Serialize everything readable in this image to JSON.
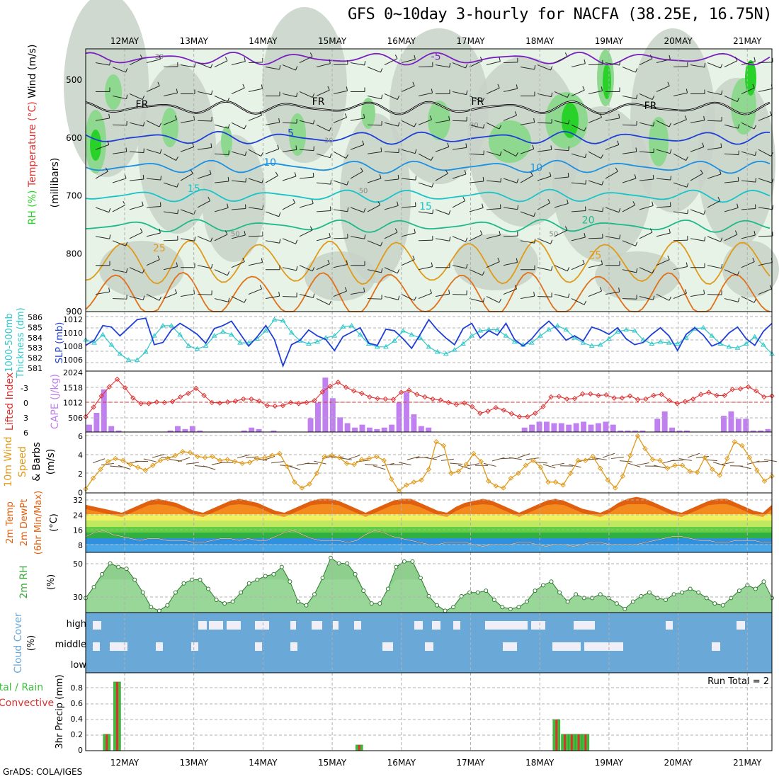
{
  "header": {
    "title": "GFS 0~10day 3-hourly for NACFA (38.25E, 16.75N)",
    "credit": "GrADS: COLA/IGES"
  },
  "colors": {
    "rh_light": "#e6f3e6",
    "rh_gray": "#c8d2c8",
    "rh_mid": "#8fd88f",
    "rh_strong": "#28d228",
    "iso_purple": "#7a1fbf",
    "iso_black": "#000000",
    "iso_blue": "#1f3fd6",
    "iso_lightblue": "#1e90e0",
    "iso_cyan": "#19c3c8",
    "iso_teal": "#1fb88a",
    "iso_orange": "#e09a1a",
    "iso_darkorange": "#e0701a",
    "slp": "#1f3fd6",
    "thickness": "#2ec8c8",
    "lifted": "#e03030",
    "cape": "#c080f0",
    "wind10": "#e09a1a",
    "t2m": "#e06010",
    "rh2m": "#3caa3c",
    "cloud": "#6aa8d8",
    "cloud_gap": "#f0eef6",
    "precip_total": "#3cbf3c",
    "precip_conv": "#e03030"
  },
  "chart_data": [
    {
      "id": "upper-air",
      "type": "contour",
      "ylabel_parts": [
        "RH (%)",
        "Temperature (°C)",
        "Wind (m/s)"
      ],
      "yunit": "(millibars)",
      "y_ticks": [
        "500",
        "600",
        "700",
        "800",
        "900"
      ],
      "x_ticks": [
        "12MAY",
        "13MAY",
        "14MAY",
        "15MAY",
        "16MAY",
        "17MAY",
        "18MAY",
        "19MAY",
        "20MAY",
        "21MAY"
      ],
      "isotherm_labels": [
        {
          "text": "-5",
          "level": 465,
          "day": 4.5
        },
        {
          "text": "FR",
          "level": 548,
          "day": 0.25
        },
        {
          "text": "FR",
          "level": 543,
          "day": 2.8
        },
        {
          "text": "FR",
          "level": 543,
          "day": 5.1
        },
        {
          "text": "FR",
          "level": 550,
          "day": 7.6
        },
        {
          "text": "5",
          "level": 597,
          "day": 2.4
        },
        {
          "text": "10",
          "level": 648,
          "day": 2.1
        },
        {
          "text": "10",
          "level": 657,
          "day": 5.95
        },
        {
          "text": "15",
          "level": 693,
          "day": 1.0
        },
        {
          "text": "15",
          "level": 724,
          "day": 4.35
        },
        {
          "text": "20",
          "level": 748,
          "day": 6.7
        },
        {
          "text": "25",
          "level": 796,
          "day": 0.5
        },
        {
          "text": "25",
          "level": 808,
          "day": 6.8
        }
      ],
      "rh_labels": [
        {
          "text": "30",
          "level": 463,
          "day": 0.5
        },
        {
          "text": "30",
          "level": 608,
          "day": 2.95
        },
        {
          "text": "30",
          "level": 582,
          "day": 5.05
        },
        {
          "text": "50",
          "level": 695,
          "day": 3.45
        },
        {
          "text": "50",
          "level": 770,
          "day": 1.6
        },
        {
          "text": "50",
          "level": 770,
          "day": 6.2
        }
      ]
    },
    {
      "id": "slp-thickness",
      "type": "line",
      "ylabel_left": [
        "1000-500mb",
        "Thickness (dm)"
      ],
      "ylabel_right": "SLP (mb)",
      "left_ticks": [
        "586",
        "585",
        "584",
        "583",
        "582",
        "581"
      ],
      "right_ticks": [
        "1012",
        "1010",
        "1008",
        "1006"
      ],
      "series": [
        {
          "name": "SLP",
          "values": [
            1008.3,
            1009.0,
            1011.0,
            1010.8,
            1009.6,
            1010.7,
            1011.8,
            1012.0,
            1008.4,
            1008.7,
            1010.4,
            1011.3,
            1010.6,
            1009.8,
            1008.6,
            1010.6,
            1011.0,
            1011.6,
            1009.9,
            1008.2,
            1009.5,
            1011.0,
            1009.1,
            1005.5,
            1008.4,
            1009.0,
            1010.4,
            1009.6,
            1009.1,
            1007.6,
            1009.5,
            1010.1,
            1010.7,
            1008.6,
            1008.3,
            1010.5,
            1010.3,
            1009.2,
            1007.9,
            1009.8,
            1011.8,
            1010.4,
            1009.3,
            1008.4,
            1010.6,
            1011.3,
            1009.3,
            1010.3,
            1009.7,
            1011.3,
            1009.1,
            1008.2,
            1009.2,
            1010.6,
            1011.6,
            1010.4,
            1009.0,
            1009.6,
            1008.9,
            1010.8,
            1010.4,
            1009.8,
            1010.7,
            1009.2,
            1008.4,
            1008.7,
            1009.8,
            1010.7,
            1009.6,
            1007.6,
            1009.8,
            1010.7,
            1009.7,
            1008.2,
            1008.7,
            1010.0,
            1010.8,
            1009.2,
            1008.3,
            1010.2,
            1011.3
          ]
        },
        {
          "name": "Thickness",
          "values": [
            583.6,
            583.3,
            584.1,
            583.1,
            582.2,
            581.6,
            581.6,
            582.4,
            584.0,
            585.0,
            585.0,
            584.1,
            583.0,
            582.7,
            583.0,
            584.0,
            584.4,
            584.1,
            583.3,
            583.3,
            583.7,
            584.5,
            585.6,
            585.5,
            584.3,
            583.5,
            583.2,
            583.4,
            583.8,
            584.0,
            584.9,
            585.0,
            584.1,
            583.2,
            582.9,
            582.9,
            583.5,
            584.5,
            584.1,
            583.8,
            582.9,
            582.4,
            582.2,
            582.6,
            583.2,
            584.0,
            584.5,
            584.6,
            584.6,
            584.0,
            583.4,
            583.1,
            583.3,
            584.0,
            584.6,
            585.0,
            584.6,
            583.8,
            583.3,
            583.0,
            583.1,
            583.7,
            584.4,
            584.6,
            584.5,
            583.6,
            583.2,
            583.4,
            583.3,
            583.2,
            583.8,
            584.7,
            584.8,
            584.0,
            583.2,
            582.9,
            582.8,
            583.2,
            583.9,
            583.1,
            582.2
          ]
        }
      ]
    },
    {
      "id": "lifted-cape",
      "type": "bar-line",
      "ylabel_left": "Lifted Index",
      "ylabel_right": "CAPE (J/kg)",
      "left_ticks": [
        "-3",
        "0",
        "3",
        "6"
      ],
      "right_ticks": [
        "2024",
        "1518",
        "1012",
        "506"
      ],
      "lifted_index": [
        3.0,
        1.1,
        -1.1,
        -2.9,
        -4.4,
        -2.7,
        -0.7,
        0.4,
        0.4,
        0.1,
        0.2,
        0.0,
        -0.9,
        -1.6,
        -2.6,
        -1.2,
        0.2,
        0.3,
        0.1,
        -0.1,
        -0.5,
        -0.5,
        -0.1,
        0.8,
        0.9,
        0.8,
        0.2,
        0.4,
        0.2,
        -0.2,
        -1.9,
        -3.0,
        -3.8,
        -2.8,
        -2.1,
        -1.6,
        -0.9,
        -0.6,
        -0.5,
        -0.4,
        -1.8,
        -2.2,
        -1.4,
        -0.9,
        -0.5,
        -0.3,
        0.2,
        0.6,
        0.3,
        1.0,
        2.3,
        1.9,
        1.2,
        1.7,
        2.4,
        3.0,
        3.0,
        2.3,
        1.0,
        -0.9,
        -1.0,
        -0.5,
        -0.6,
        -1.5,
        -1.5,
        -1.2,
        -1.3,
        -0.7,
        -0.7,
        -1.1,
        -0.4,
        -0.5,
        -1.2,
        -1.4,
        -0.2,
        0.4,
        0.0,
        -0.5,
        -1.4,
        -1.8,
        -1.2,
        -1.2,
        -2.4,
        -2.5,
        -2.9,
        -2.1,
        -0.9,
        -1.1
      ],
      "cape": [
        250,
        650,
        1450,
        200,
        50,
        0,
        0,
        0,
        0,
        0,
        0,
        50,
        200,
        100,
        200,
        50,
        0,
        0,
        0,
        0,
        0,
        50,
        150,
        100,
        0,
        50,
        0,
        0,
        0,
        0,
        470,
        1000,
        1850,
        1150,
        500,
        300,
        150,
        250,
        150,
        100,
        150,
        250,
        1000,
        1350,
        600,
        200,
        150,
        0,
        0,
        0,
        0,
        0,
        0,
        0,
        0,
        0,
        0,
        0,
        0,
        150,
        250,
        350,
        350,
        300,
        300,
        250,
        300,
        350,
        250,
        300,
        350,
        250,
        50,
        50,
        50,
        50,
        0,
        450,
        700,
        150,
        50,
        50,
        0,
        0,
        0,
        0,
        550,
        700,
        450,
        450,
        50,
        50,
        100
      ]
    },
    {
      "id": "wind10m",
      "type": "line",
      "ylabel": [
        "10m Wind",
        "Speed",
        "& Barbs",
        "(m/s)"
      ],
      "y_ticks": [
        "6",
        "4",
        "2",
        "0"
      ],
      "series": [
        {
          "name": "Speed",
          "values": [
            0.4,
            1.5,
            2.4,
            3.2,
            3.5,
            3.3,
            2.9,
            2.6,
            2.3,
            2.8,
            3.3,
            3.5,
            3.8,
            4.2,
            4.1,
            3.7,
            3.6,
            3.7,
            3.3,
            3.4,
            3.2,
            3.0,
            3.1,
            3.5,
            3.6,
            3.8,
            4.0,
            2.7,
            1.1,
            0.5,
            0.9,
            2.0,
            3.7,
            3.8,
            3.6,
            3.0,
            2.9,
            3.4,
            3.5,
            3.7,
            3.3,
            1.4,
            0.2,
            0.8,
            1.1,
            1.3,
            2.4,
            5.2,
            4.8,
            2.0,
            2.2,
            2.9,
            4.0,
            3.2,
            1.2,
            0.7,
            0.5,
            1.5,
            2.0,
            2.8,
            3.3,
            2.6,
            1.1,
            1.1,
            0.8,
            2.0,
            3.3,
            3.3,
            3.7,
            2.5,
            1.3,
            0.5,
            1.7,
            3.8,
            5.8,
            4.5,
            3.4,
            3.3,
            2.5,
            2.8,
            2.8,
            2.2,
            2.1,
            3.6,
            2.4,
            1.8,
            3.5,
            5.2,
            4.8,
            3.6,
            2.3,
            1.2,
            1.7
          ]
        }
      ]
    },
    {
      "id": "temp2m",
      "type": "area",
      "ylabel": [
        "2m Temp",
        "2m DewPt",
        "(6hr Min/Max)",
        "(°C)"
      ],
      "y_ticks": [
        "32",
        "24",
        "16",
        "8"
      ],
      "series": [
        {
          "name": "Temp",
          "values": [
            28,
            27,
            26,
            25,
            24,
            26,
            28,
            30,
            31,
            30,
            29,
            27,
            25,
            24,
            26,
            28,
            30,
            31,
            30,
            29,
            27,
            25,
            24,
            26,
            28,
            30,
            31,
            31,
            30,
            28,
            26,
            24,
            26,
            28,
            30,
            31,
            31,
            29,
            27,
            25,
            24,
            27,
            29,
            30,
            31,
            30,
            28,
            26,
            24,
            26,
            28,
            30,
            31,
            30,
            28,
            26,
            25,
            24,
            26,
            29,
            31,
            32,
            31,
            29,
            27,
            25,
            24,
            26,
            28,
            30,
            31,
            31,
            29,
            27,
            25,
            24,
            28
          ]
        },
        {
          "name": "DewPt",
          "values": [
            12,
            14,
            15,
            13,
            12,
            11,
            10,
            11,
            11,
            10,
            10,
            10,
            9,
            9,
            10,
            11,
            11,
            10,
            11,
            10,
            10,
            12,
            14,
            15,
            13,
            11,
            10,
            10,
            10,
            9,
            10,
            13,
            15,
            14,
            12,
            11,
            10,
            9,
            8,
            8,
            9,
            9,
            9,
            8,
            7,
            8,
            8,
            8,
            9,
            9,
            8,
            7,
            8,
            8,
            7,
            8,
            9,
            9,
            8,
            8,
            8,
            8,
            9,
            10,
            11,
            12,
            12,
            11,
            10,
            10,
            9,
            9,
            10,
            10,
            10,
            9,
            9
          ]
        }
      ]
    },
    {
      "id": "rh2m",
      "type": "area",
      "ylabel": "2m RH",
      "yunit": "(%)",
      "y_ticks": [
        "50",
        "30"
      ],
      "series": [
        {
          "name": "RH",
          "values": [
            30,
            36,
            43,
            49,
            47,
            46,
            40,
            33,
            25,
            23,
            26,
            33,
            38,
            40,
            40,
            35,
            29,
            27,
            28,
            33,
            38,
            40,
            42,
            43,
            47,
            39,
            28,
            26,
            32,
            41,
            52,
            49,
            49,
            43,
            34,
            27,
            27,
            35,
            47,
            50,
            50,
            41,
            31,
            26,
            23,
            25,
            31,
            33,
            33,
            34,
            29,
            25,
            24,
            25,
            28,
            34,
            37,
            39,
            33,
            28,
            32,
            30,
            30,
            32,
            30,
            27,
            24,
            28,
            31,
            33,
            30,
            29,
            32,
            33,
            35,
            33,
            30,
            27,
            26,
            30,
            34,
            37,
            35,
            39,
            30
          ]
        }
      ]
    },
    {
      "id": "cloud-cover",
      "type": "heatmap",
      "ylabel": "Cloud Cover",
      "yunit": "(%)",
      "y_ticks": [
        "high",
        "middle",
        "low"
      ]
    },
    {
      "id": "precip",
      "type": "bar",
      "ylabel_left": [
        "Total / Rain",
        "Convective"
      ],
      "ylabel": "3hr Precip (mm)",
      "y_ticks": [
        "0.8",
        "0.6",
        "0.4",
        "0.2",
        "0"
      ],
      "annotation": "Run Total = 2",
      "x_ticks": [
        "12MAY",
        "13MAY",
        "14MAY",
        "15MAY",
        "16MAY",
        "17MAY",
        "18MAY",
        "19MAY",
        "20MAY",
        "21MAY"
      ],
      "bars": [
        {
          "day": 0.1,
          "value": 0.2
        },
        {
          "day": 0.25,
          "value": 0.84
        },
        {
          "day": 3.75,
          "value": 0.07
        },
        {
          "day": 6.6,
          "value": 0.38
        },
        {
          "day": 6.72,
          "value": 0.2
        },
        {
          "day": 6.82,
          "value": 0.2
        },
        {
          "day": 6.92,
          "value": 0.2
        },
        {
          "day": 7.02,
          "value": 0.2
        }
      ]
    }
  ]
}
